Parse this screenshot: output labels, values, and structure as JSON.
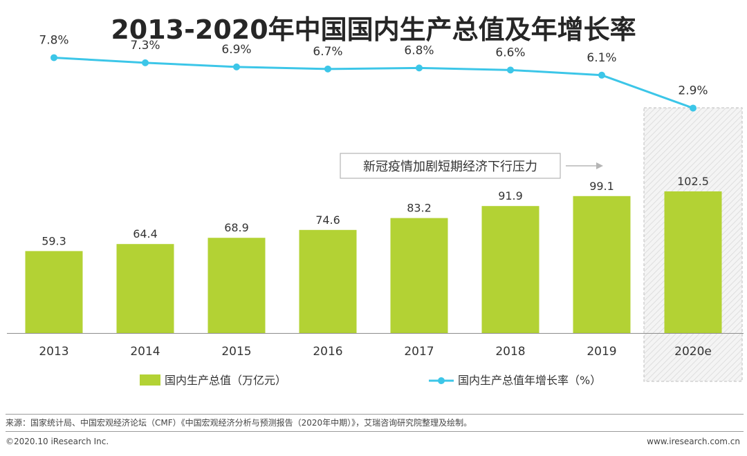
{
  "chart_data": {
    "type": "bar+line",
    "title": "2013-2020年中国国内生产总值及年增长率",
    "categories": [
      "2013",
      "2014",
      "2015",
      "2016",
      "2017",
      "2018",
      "2019",
      "2020e"
    ],
    "series": [
      {
        "name": "国内生产总值（万亿元）",
        "type": "bar",
        "color": "#b3d234",
        "values": [
          59.3,
          64.4,
          68.9,
          74.6,
          83.2,
          91.9,
          99.1,
          102.5
        ],
        "labels": [
          "59.3",
          "64.4",
          "68.9",
          "74.6",
          "83.2",
          "91.9",
          "99.1",
          "102.5"
        ]
      },
      {
        "name": "国内生产总值年增长率（%）",
        "type": "line",
        "color": "#3cc6e8",
        "values": [
          7.8,
          7.3,
          6.9,
          6.7,
          6.8,
          6.6,
          6.1,
          2.9
        ],
        "labels": [
          "7.8%",
          "7.3%",
          "6.9%",
          "6.7%",
          "6.8%",
          "6.6%",
          "6.1%",
          "2.9%"
        ]
      }
    ],
    "bar_ylim": [
      0,
      180
    ],
    "line_ylim": [
      -5,
      8.3
    ],
    "annotation": "新冠疫情加剧短期经济下行压力",
    "highlight_category": "2020e",
    "legend": [
      "国内生产总值（万亿元）",
      "国内生产总值年增长率（%）"
    ],
    "legend_position": "bottom"
  },
  "footer": {
    "source": "来源：国家统计局、中国宏观经济论坛（CMF）《中国宏观经济分析与预测报告（2020年中期）》，艾瑞咨询研究院整理及绘制。",
    "copyright": "©2020.10 iResearch Inc.",
    "website": "www.iresearch.com.cn"
  },
  "colors": {
    "bar": "#b3d234",
    "line": "#3cc6e8",
    "annotation_border": "#b5b5b5",
    "axis": "#888888"
  }
}
